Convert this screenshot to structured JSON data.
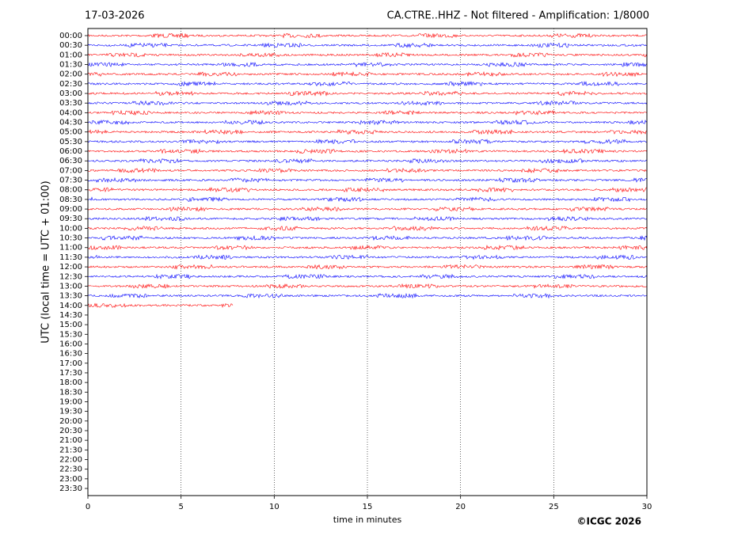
{
  "chart_data": {
    "type": "helicorder",
    "title_left": "17-03-2026",
    "title_right": "CA.CTRE..HHZ - Not filtered - Amplification: 1/8000",
    "y_label": "UTC (local time = UTC + 01:00)",
    "x_label": "time in minutes",
    "credit": "©ICGC 2026",
    "categories": [
      "00:00",
      "00:30",
      "01:00",
      "01:30",
      "02:00",
      "02:30",
      "03:00",
      "03:30",
      "04:00",
      "04:30",
      "05:00",
      "05:30",
      "06:00",
      "06:30",
      "07:00",
      "07:30",
      "08:00",
      "08:30",
      "09:00",
      "09:30",
      "10:00",
      "10:30",
      "11:00",
      "11:30",
      "12:00",
      "12:30",
      "13:00",
      "13:30",
      "14:00",
      "14:30",
      "15:00",
      "15:30",
      "16:00",
      "16:30",
      "17:00",
      "17:30",
      "18:00",
      "18:30",
      "19:00",
      "19:30",
      "20:00",
      "20:30",
      "21:00",
      "21:30",
      "22:00",
      "22:30",
      "23:00",
      "23:30"
    ],
    "values": [
      30,
      30,
      30,
      30,
      30,
      30,
      30,
      30,
      30,
      30,
      30,
      30,
      30,
      30,
      30,
      30,
      30,
      30,
      30,
      30,
      30,
      30,
      30,
      30,
      30,
      30,
      30,
      30,
      7.8,
      null,
      null,
      null,
      null,
      null,
      null,
      null,
      null,
      null,
      null,
      null,
      null,
      null,
      null,
      null,
      null,
      null,
      null,
      null
    ],
    "colors": [
      "#ff0000",
      "#0000ff"
    ],
    "xlim": [
      0,
      30
    ],
    "xticks": [
      0,
      5,
      10,
      15,
      20,
      25,
      30
    ],
    "grid": true
  }
}
